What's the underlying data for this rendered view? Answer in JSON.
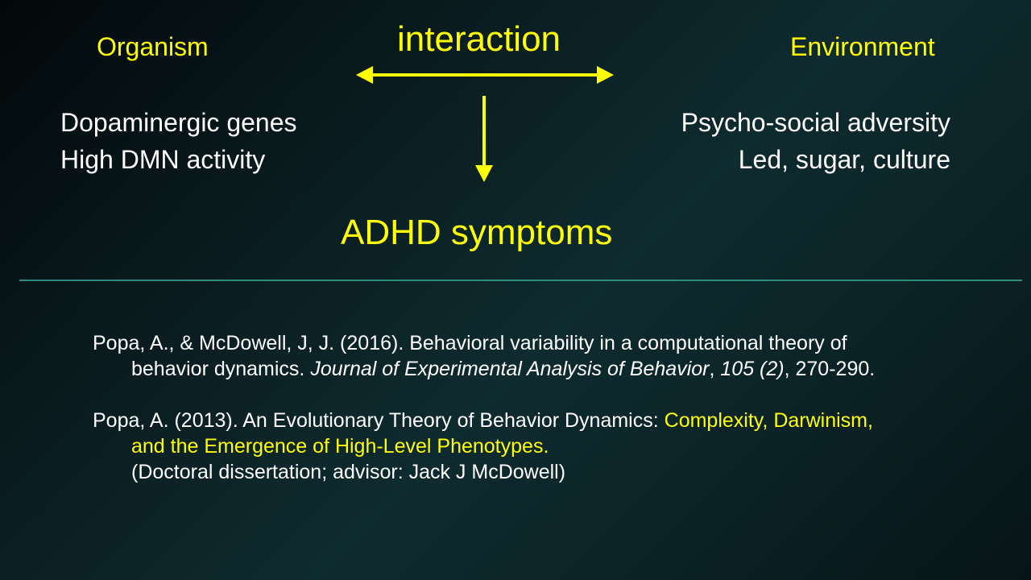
{
  "diagram": {
    "organism_label": "Organism",
    "interaction_label": "interaction",
    "environment_label": "Environment",
    "organism_factors": [
      "Dopaminergic genes",
      "High DMN activity"
    ],
    "environment_factors": [
      "Psycho-social adversity",
      "Led, sugar, culture"
    ],
    "outcome_label": "ADHD symptoms"
  },
  "references": [
    {
      "line1": "Popa, A., & McDowell, J, J. (2016). Behavioral variability in a computational theory of",
      "line2_prefix": "behavior dynamics. ",
      "journal": "Journal of Experimental Analysis of Behavior",
      "sep": ", ",
      "volume": "105 (2)",
      "pages": ", 270-290."
    },
    {
      "line1_prefix": "Popa, A. (2013). An Evolutionary Theory of Behavior Dynamics: ",
      "title_part1": "Complexity, Darwinism,",
      "title_part2": "and the Emergence of High-Level Phenotypes.",
      "note": "(Doctoral dissertation; advisor: Jack J McDowell)"
    }
  ],
  "colors": {
    "highlight": "#ffff00",
    "text": "#ffffff",
    "divider": "#2e8c7c"
  }
}
